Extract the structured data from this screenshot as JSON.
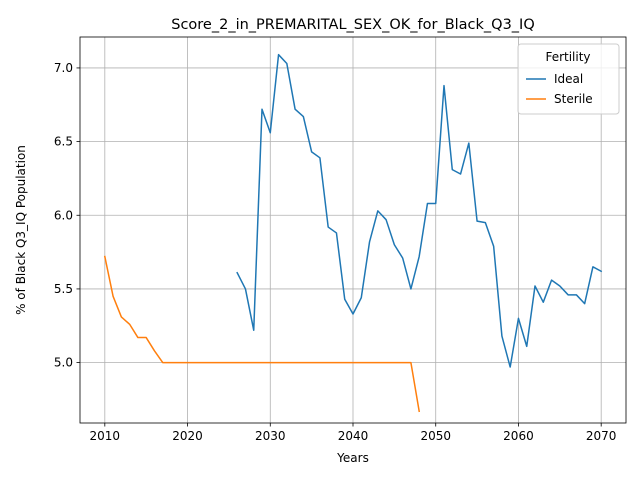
{
  "chart_data": {
    "type": "line",
    "title": "Score_2_in_PREMARITAL_SEX_OK_for_Black_Q3_IQ",
    "xlabel": "Years",
    "ylabel": "% of Black Q3_IQ Population",
    "xlim": [
      2007,
      2073
    ],
    "ylim": [
      4.59,
      7.21
    ],
    "xticks": [
      2010,
      2020,
      2030,
      2040,
      2050,
      2060,
      2070
    ],
    "yticks": [
      5.0,
      5.5,
      6.0,
      6.5,
      7.0
    ],
    "xtick_labels": [
      "2010",
      "2020",
      "2030",
      "2040",
      "2050",
      "2060",
      "2070"
    ],
    "ytick_labels": [
      "5.0",
      "5.5",
      "6.0",
      "6.5",
      "7.0"
    ],
    "grid": true,
    "legend": {
      "title": "Fertility",
      "position": "top-right"
    },
    "series": [
      {
        "name": "Ideal",
        "color": "#1f77b4",
        "x": [
          2026,
          2027,
          2028,
          2029,
          2030,
          2031,
          2032,
          2033,
          2034,
          2035,
          2036,
          2037,
          2038,
          2039,
          2040,
          2041,
          2042,
          2043,
          2044,
          2045,
          2046,
          2047,
          2048,
          2049,
          2050,
          2051,
          2052,
          2053,
          2054,
          2055,
          2056,
          2057,
          2058,
          2059,
          2060,
          2061,
          2062,
          2063,
          2064,
          2065,
          2066,
          2067,
          2068,
          2069,
          2070
        ],
        "y": [
          5.61,
          5.5,
          5.22,
          6.72,
          6.56,
          7.09,
          7.03,
          6.72,
          6.67,
          6.43,
          6.39,
          5.92,
          5.88,
          5.43,
          5.33,
          5.44,
          5.82,
          6.03,
          5.97,
          5.8,
          5.71,
          5.5,
          5.72,
          6.08,
          6.08,
          6.88,
          6.31,
          6.28,
          6.49,
          5.96,
          5.95,
          5.79,
          5.18,
          4.97,
          5.3,
          5.11,
          5.52,
          5.41,
          5.56,
          5.52,
          5.46,
          5.46,
          5.4,
          5.65,
          5.62
        ]
      },
      {
        "name": "Sterile",
        "color": "#ff7f0e",
        "x": [
          2010,
          2011,
          2012,
          2013,
          2014,
          2015,
          2016,
          2017,
          2018,
          2019,
          2020,
          2021,
          2022,
          2023,
          2024,
          2025,
          2026,
          2027,
          2028,
          2029,
          2030,
          2031,
          2032,
          2033,
          2034,
          2035,
          2036,
          2037,
          2038,
          2039,
          2040,
          2041,
          2042,
          2043,
          2044,
          2045,
          2046,
          2047,
          2048
        ],
        "y": [
          5.72,
          5.45,
          5.31,
          5.26,
          5.17,
          5.17,
          5.08,
          5.0,
          5.0,
          5.0,
          5.0,
          5.0,
          5.0,
          5.0,
          5.0,
          5.0,
          5.0,
          5.0,
          5.0,
          5.0,
          5.0,
          5.0,
          5.0,
          5.0,
          5.0,
          5.0,
          5.0,
          5.0,
          5.0,
          5.0,
          5.0,
          5.0,
          5.0,
          5.0,
          5.0,
          5.0,
          5.0,
          5.0,
          4.67
        ]
      }
    ]
  }
}
